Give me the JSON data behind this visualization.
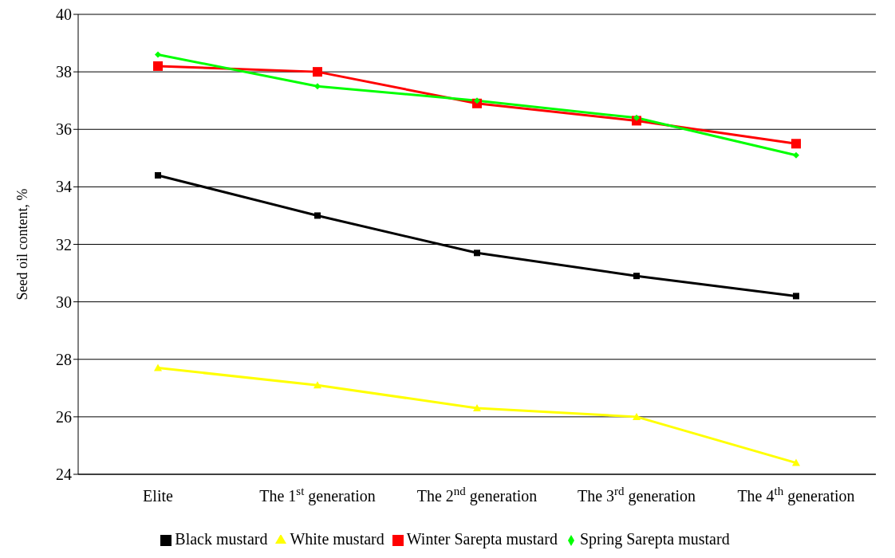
{
  "chart_data": {
    "type": "line",
    "ylabel": "Seed oil content, %",
    "categories": [
      "Elite",
      "The 1$^{st}$ generation",
      "The 2$^{nd}$ generation",
      "The 3$^{rd}$ generation",
      "The 4$^{th}$ generation"
    ],
    "series": [
      {
        "name": "Spring Sarepta mustard",
        "color": "#00ff00",
        "marker": "diamond",
        "values": [
          38.6,
          37.5,
          37.0,
          36.4,
          35.1
        ]
      },
      {
        "name": "Winter Sarepta mustard",
        "color": "#ff0000",
        "marker": "square",
        "values": [
          38.2,
          38.0,
          36.9,
          36.3,
          35.5
        ]
      },
      {
        "name": "White mustard",
        "color": "#ffff00",
        "marker": "triangle",
        "values": [
          27.7,
          27.1,
          26.3,
          26.0,
          24.4
        ]
      },
      {
        "name": "Black mustard",
        "color": "#000000",
        "marker": "square",
        "values": [
          34.4,
          33.0,
          31.7,
          30.9,
          30.2
        ]
      }
    ],
    "ylim": [
      24,
      40
    ],
    "yticks": [
      24,
      26,
      28,
      30,
      32,
      34,
      36,
      38,
      40
    ],
    "grid": "y",
    "legend": "bottom",
    "line_style": "solid"
  }
}
